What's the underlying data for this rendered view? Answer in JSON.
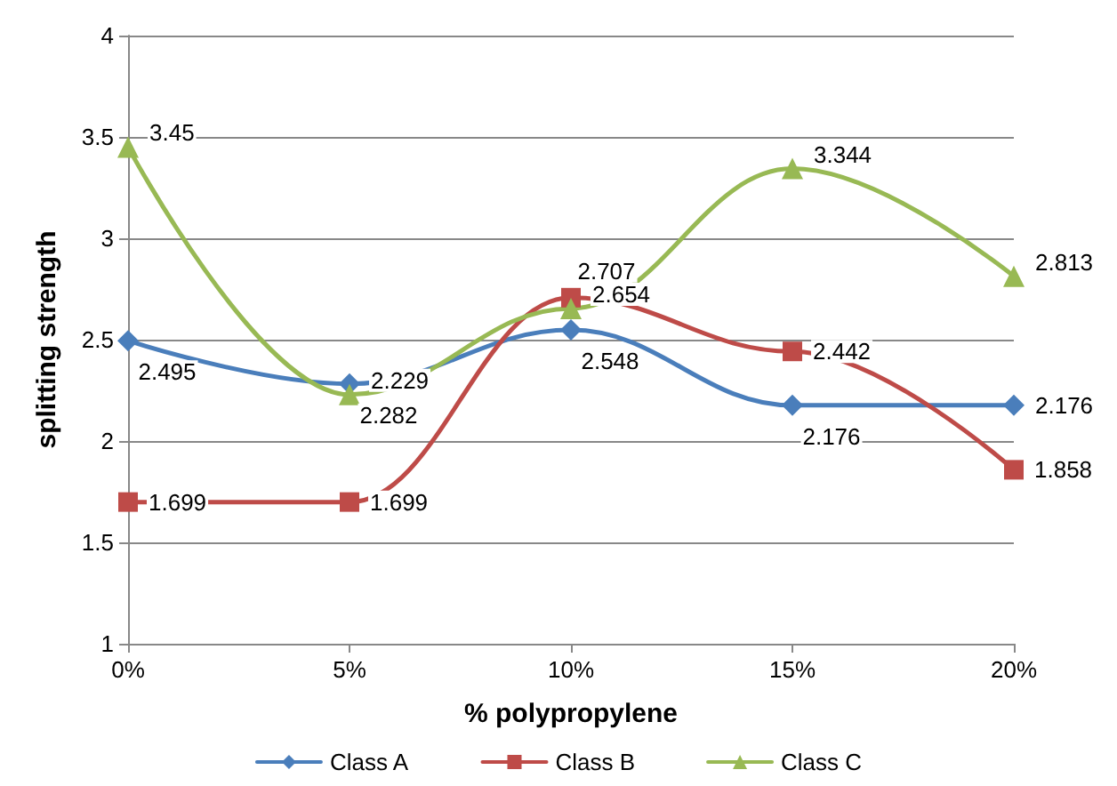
{
  "chart_data": {
    "type": "line",
    "xlabel": "% polypropylene",
    "ylabel": "splitting strength",
    "categories": [
      "0%",
      "5%",
      "10%",
      "15%",
      "20%"
    ],
    "series": [
      {
        "name": "Class A",
        "color": "#4a7ebb",
        "marker": "diamond",
        "values": [
          2.495,
          2.282,
          2.548,
          2.176,
          2.176
        ]
      },
      {
        "name": "Class B",
        "color": "#be4b48",
        "marker": "square",
        "values": [
          1.699,
          1.699,
          2.707,
          2.442,
          1.858
        ]
      },
      {
        "name": "Class C",
        "color": "#98b954",
        "marker": "triangle",
        "values": [
          3.45,
          2.229,
          2.654,
          3.344,
          2.813
        ]
      }
    ],
    "ylim": [
      1,
      4
    ],
    "yticks": [
      1,
      1.5,
      2,
      2.5,
      3,
      3.5,
      4
    ],
    "grid": "y",
    "legend": "bottom",
    "data_labels": true
  }
}
